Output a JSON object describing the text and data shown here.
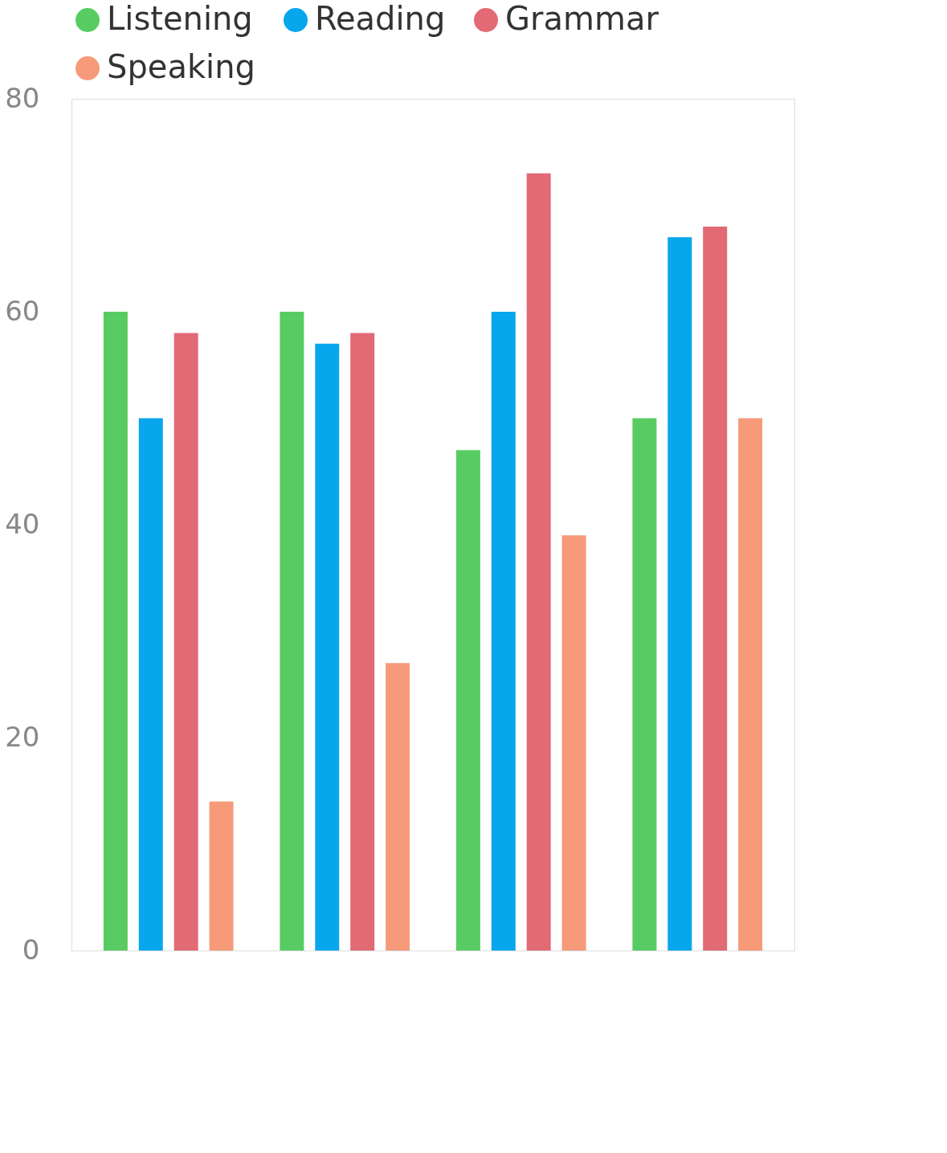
{
  "chart_data": {
    "type": "bar",
    "categories": [
      null,
      null,
      null,
      null
    ],
    "series": [
      {
        "name": "Listening",
        "color": "#58cc62",
        "values": [
          60,
          60,
          47,
          50
        ]
      },
      {
        "name": "Reading",
        "color": "#08a6ec",
        "values": [
          50,
          57,
          60,
          67
        ]
      },
      {
        "name": "Grammar",
        "color": "#e16a74",
        "values": [
          58,
          58,
          73,
          68
        ]
      },
      {
        "name": "Speaking",
        "color": "#f69a7a",
        "values": [
          14,
          27,
          39,
          50
        ]
      }
    ],
    "ylim": [
      0,
      80
    ],
    "yticks": [
      0,
      20,
      40,
      60,
      80
    ],
    "grid": false,
    "legend": "top",
    "tick_labels": "y"
  }
}
